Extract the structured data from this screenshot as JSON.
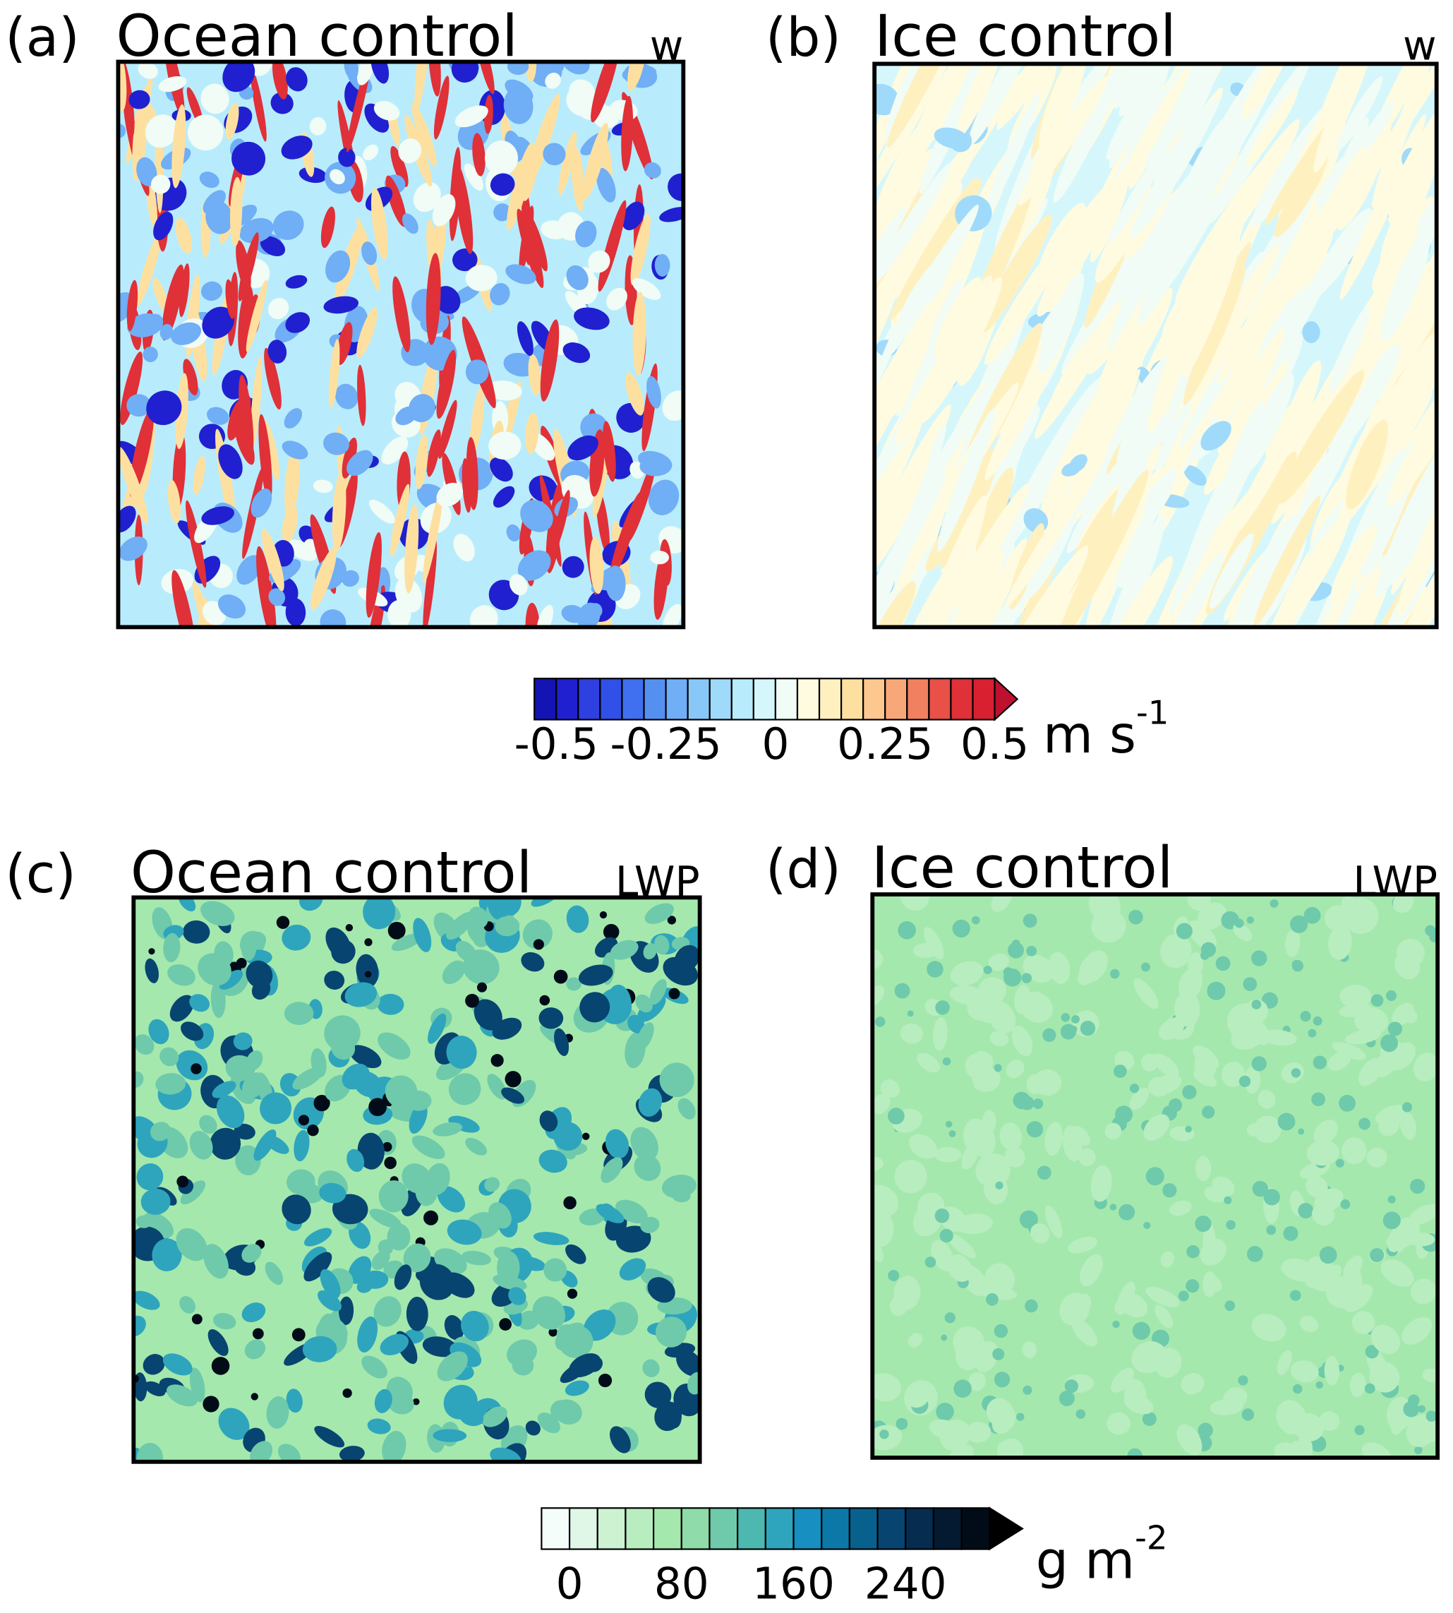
{
  "panels": [
    {
      "label": "(a)",
      "title": "Ocean control",
      "variable": "w"
    },
    {
      "label": "(b)",
      "title": "Ice control",
      "variable": "w"
    },
    {
      "label": "(c)",
      "title": "Ocean control",
      "variable": "LWP"
    },
    {
      "label": "(d)",
      "title": "Ice control",
      "variable": "LWP"
    }
  ],
  "colorbars": [
    {
      "range": [
        -0.55,
        0.5
      ],
      "ticks": [
        -0.5,
        -0.25,
        0,
        0.25,
        0.5
      ],
      "unit": "m s",
      "unit_exponent": "-1",
      "colors": [
        "#1414b4",
        "#2020d0",
        "#2e40e0",
        "#3050e8",
        "#4070f0",
        "#5590f0",
        "#70aef5",
        "#88c8f8",
        "#a0dafa",
        "#b8ecfc",
        "#d5f7fc",
        "#f0fcf5",
        "#fffbe0",
        "#fff0c0",
        "#fde0a0",
        "#fcc890",
        "#f8a878",
        "#f08060",
        "#e85048",
        "#e03038",
        "#d82030"
      ],
      "extend_color": "#c01030"
    },
    {
      "range": [
        -20,
        300
      ],
      "ticks": [
        0,
        80,
        160,
        240
      ],
      "unit": "g m",
      "unit_exponent": "-2",
      "colors": [
        "#f5fdfb",
        "#e0f7e8",
        "#ccf2d2",
        "#b8edc0",
        "#a5e8ad",
        "#8fdcaa",
        "#6ecaaa",
        "#4db8b0",
        "#2ea5bd",
        "#178fc0",
        "#0c78a8",
        "#08608c",
        "#084470",
        "#062c50",
        "#041a30",
        "#020c18"
      ],
      "extend_color": "#000000"
    }
  ]
}
